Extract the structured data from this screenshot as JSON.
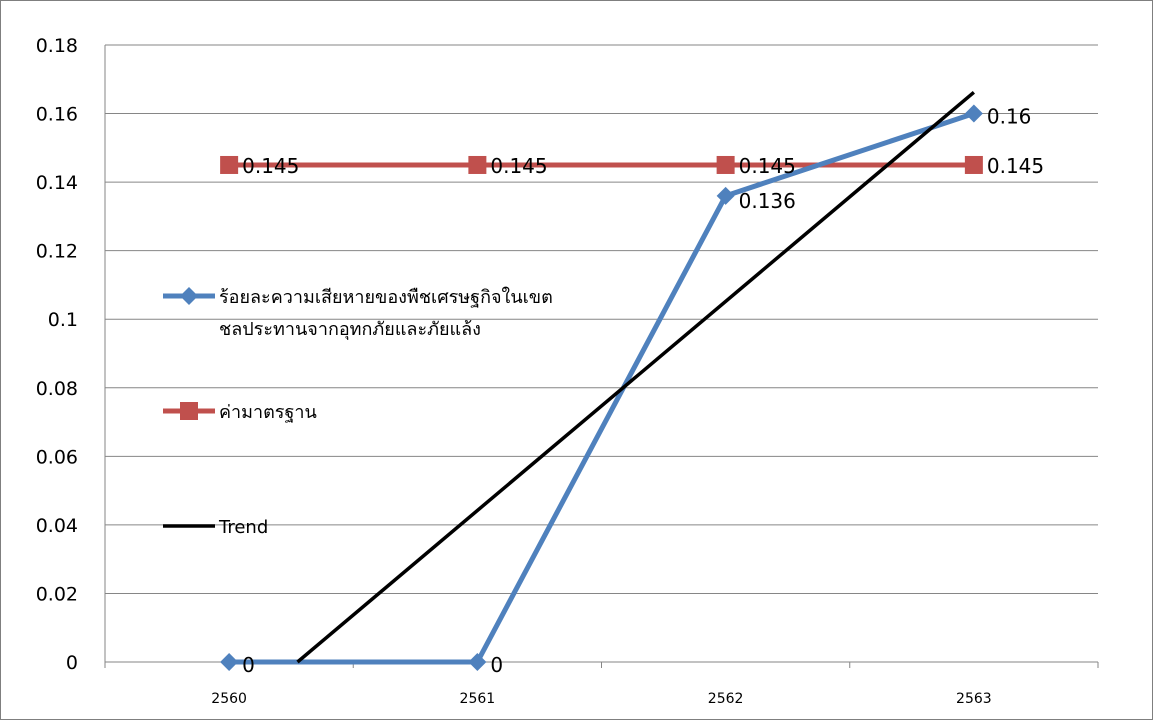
{
  "chart_data": {
    "type": "line",
    "categories": [
      "2560",
      "2561",
      "2562",
      "2563"
    ],
    "ylim": [
      0,
      0.18
    ],
    "yticks": [
      "0",
      "0.02",
      "0.04",
      "0.06",
      "0.08",
      "0.1",
      "0.12",
      "0.14",
      "0.16",
      "0.18"
    ],
    "grid": "horizontal",
    "legend_position": "inside-left",
    "series": [
      {
        "name_lines": [
          "ร้อยละความเสียหายของพืชเศรษฐกิจในเขต",
          "ชลประทานจากอุทกภัยและภัยแล้ง"
        ],
        "values": [
          0,
          0,
          0.136,
          0.16
        ],
        "labels": [
          "0",
          "0",
          "0.136",
          "0.16"
        ],
        "color": "#4f81bd",
        "marker": "diamond"
      },
      {
        "name_lines": [
          "ค่ามาตรฐาน"
        ],
        "values": [
          0.145,
          0.145,
          0.145,
          0.145
        ],
        "labels": [
          "0.145",
          "0.145",
          "0.145",
          "0.145"
        ],
        "color": "#c0504d",
        "marker": "square"
      },
      {
        "name_lines": [
          "Trend"
        ],
        "values": [
          -0.0168,
          0.0442,
          0.1052,
          0.1662
        ],
        "color": "#000000",
        "marker": "none",
        "trendline": true
      }
    ]
  }
}
